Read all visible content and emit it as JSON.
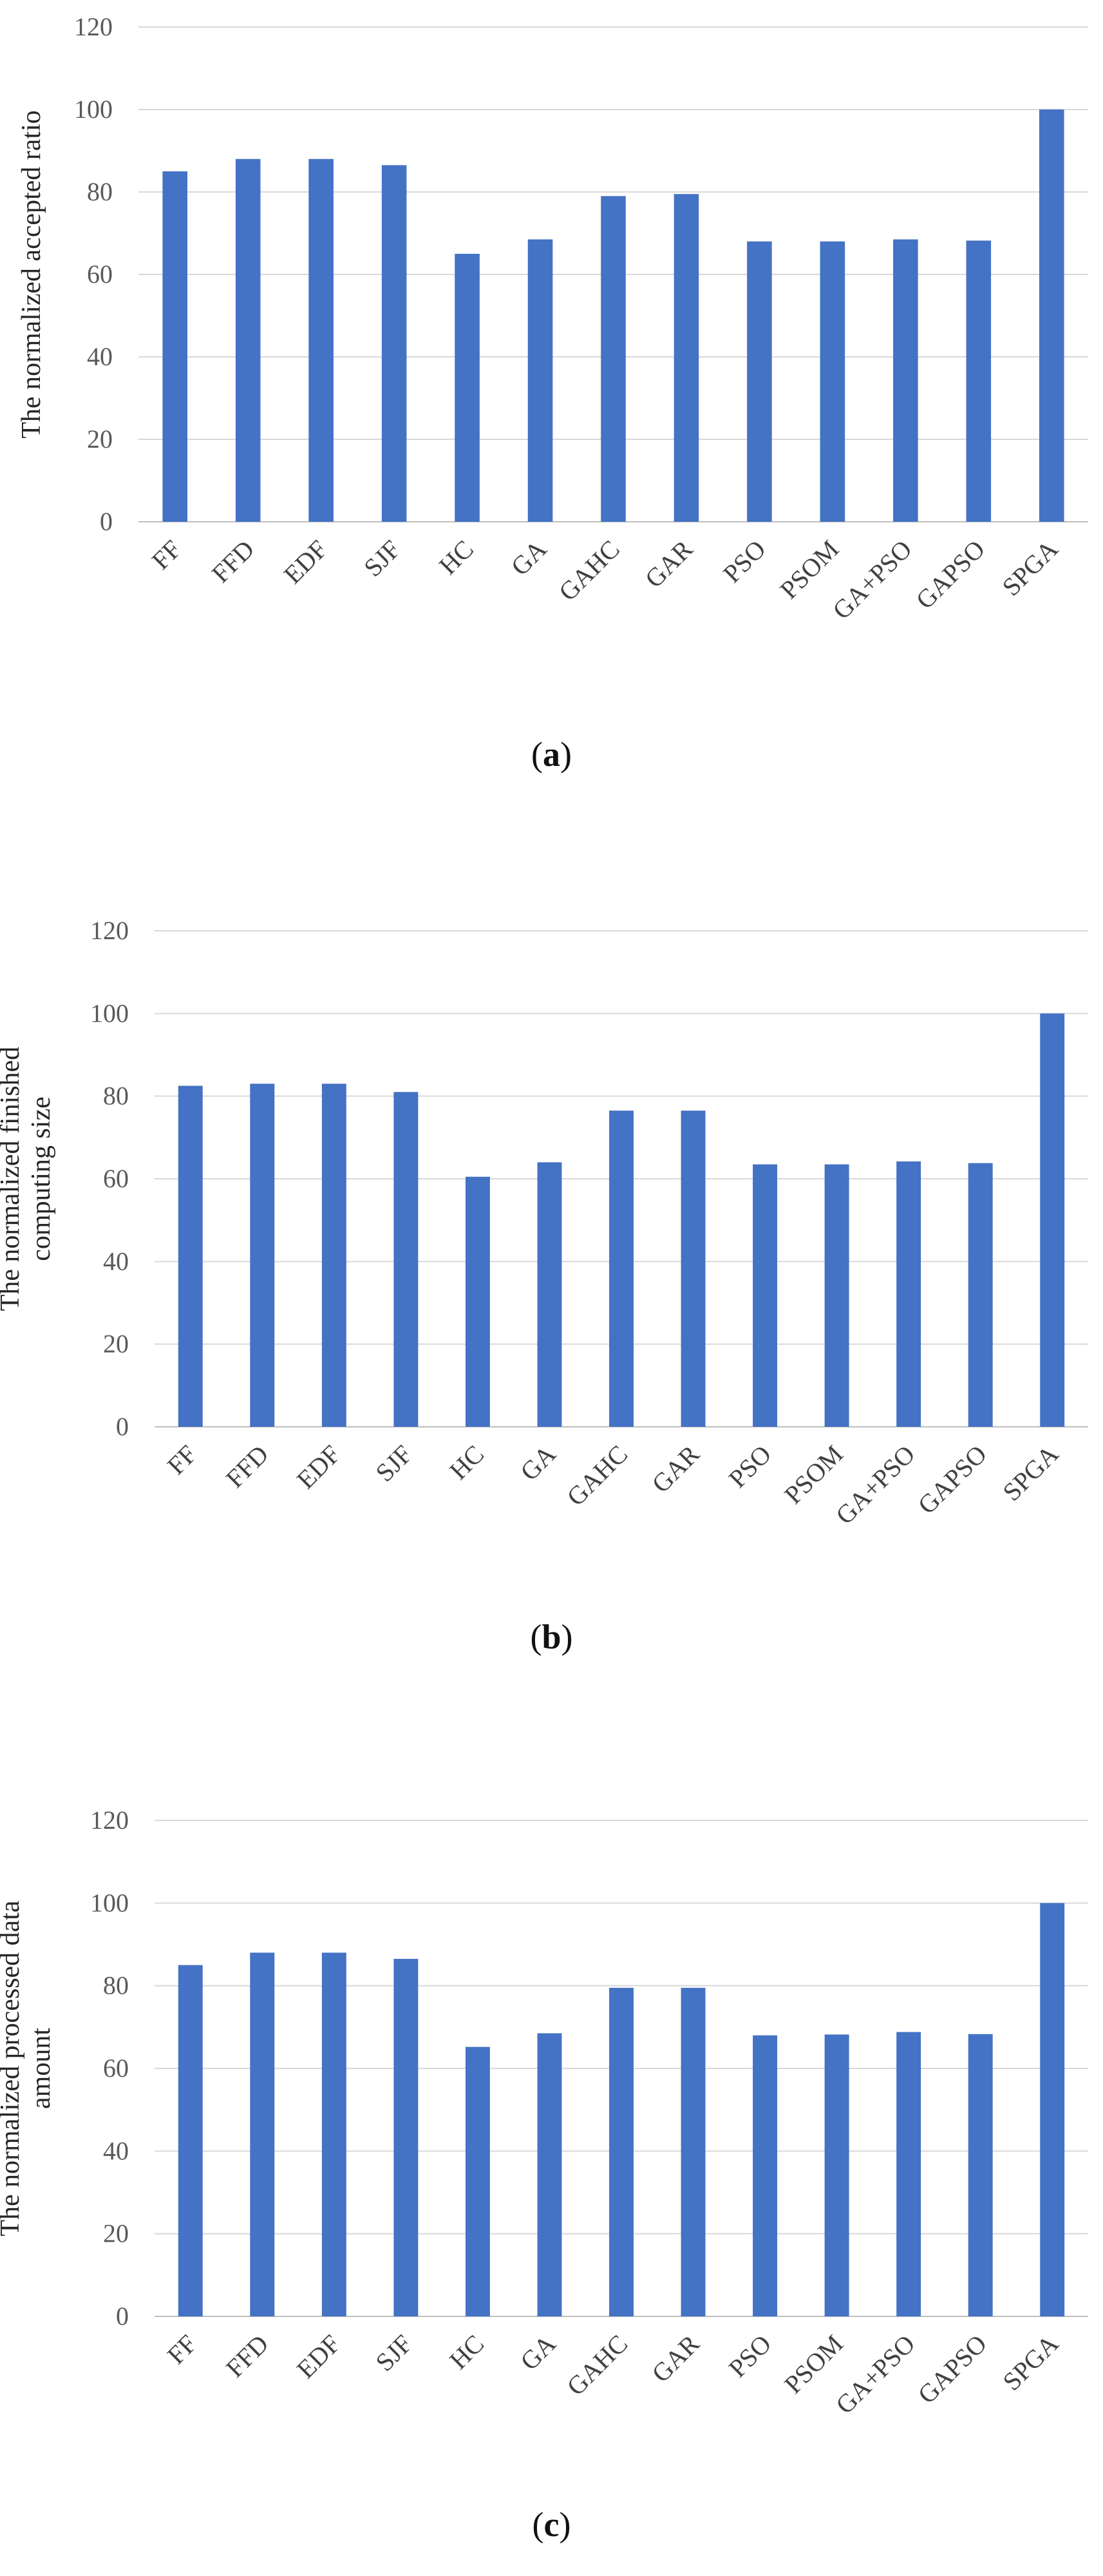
{
  "chart_data": [
    {
      "type": "bar",
      "caption_letter": "a",
      "ylabel": "The normalized accepted ratio",
      "ylim": [
        0,
        120
      ],
      "yticks": [
        0,
        20,
        40,
        60,
        80,
        100,
        120
      ],
      "grid": true,
      "categories": [
        "FF",
        "FFD",
        "EDF",
        "SJF",
        "HC",
        "GA",
        "GAHC",
        "GAR",
        "PSO",
        "PSOM",
        "GA+PSO",
        "GAPSO",
        "SPGA"
      ],
      "values": [
        85,
        88,
        88,
        86.5,
        65,
        68.5,
        79,
        79.5,
        68,
        68,
        68.5,
        68.2,
        100
      ],
      "color": "#4472C4"
    },
    {
      "type": "bar",
      "caption_letter": "b",
      "ylabel": "The normalized finished computing size",
      "ylim": [
        0,
        120
      ],
      "yticks": [
        0,
        20,
        40,
        60,
        80,
        100,
        120
      ],
      "grid": true,
      "categories": [
        "FF",
        "FFD",
        "EDF",
        "SJF",
        "HC",
        "GA",
        "GAHC",
        "GAR",
        "PSO",
        "PSOM",
        "GA+PSO",
        "GAPSO",
        "SPGA"
      ],
      "values": [
        82.5,
        83,
        83,
        81,
        60.5,
        64,
        76.5,
        76.5,
        63.5,
        63.5,
        64.2,
        63.8,
        100
      ],
      "color": "#4472C4"
    },
    {
      "type": "bar",
      "caption_letter": "c",
      "ylabel": "The normalized processed data amount",
      "ylim": [
        0,
        120
      ],
      "yticks": [
        0,
        20,
        40,
        60,
        80,
        100,
        120
      ],
      "grid": true,
      "categories": [
        "FF",
        "FFD",
        "EDF",
        "SJF",
        "HC",
        "GA",
        "GAHC",
        "GAR",
        "PSO",
        "PSOM",
        "GA+PSO",
        "GAPSO",
        "SPGA"
      ],
      "values": [
        85,
        88,
        88,
        86.5,
        65.2,
        68.5,
        79.5,
        79.5,
        68,
        68.2,
        68.8,
        68.3,
        100
      ],
      "color": "#4472C4"
    }
  ]
}
